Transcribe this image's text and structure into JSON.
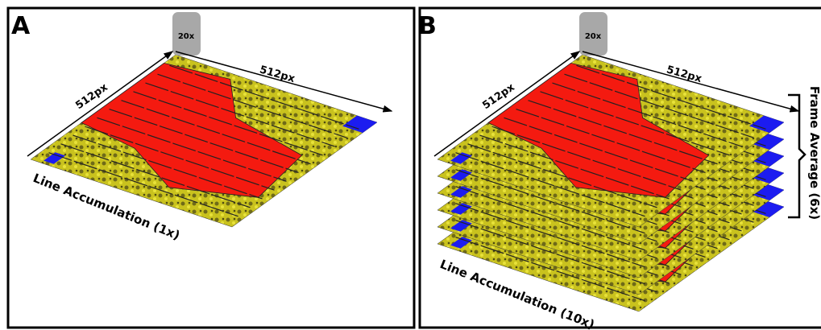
{
  "panels": [
    {
      "label": "A",
      "objective": "20x",
      "width_label": "512px",
      "height_label": "512px",
      "accumulation_label": "Line Accumulation (1x)"
    },
    {
      "label": "B",
      "objective": "20x",
      "width_label": "512px",
      "height_label": "512px",
      "accumulation_label": "Line Accumulation (10x)",
      "frame_label": "Frame Average (6x)"
    }
  ]
}
